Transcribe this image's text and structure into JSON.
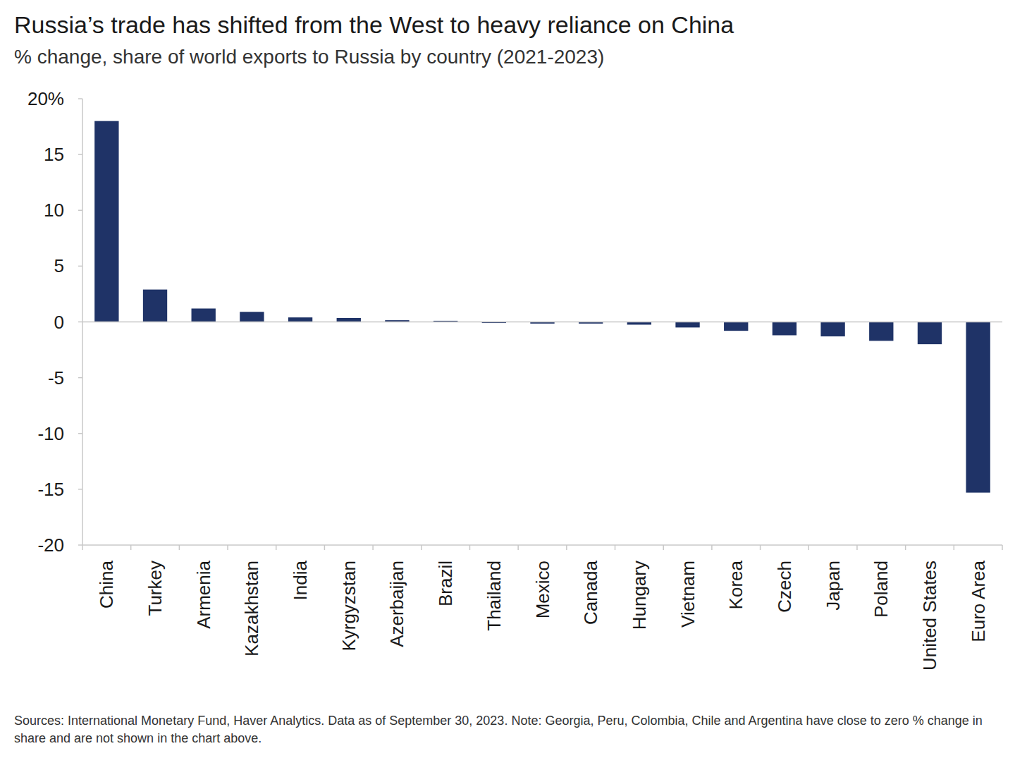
{
  "chart_data": {
    "type": "bar",
    "title": "Russia’s trade has shifted from the West to heavy reliance on China",
    "subtitle": "% change, share of world exports to Russia by country (2021-2023)",
    "source": "Sources: International Monetary Fund, Haver Analytics. Data as of September 30, 2023. Note: Georgia, Peru, Colombia, Chile and Argentina have close to zero % change in share and are not shown in the chart above.",
    "categories": [
      "China",
      "Turkey",
      "Armenia",
      "Kazakhstan",
      "India",
      "Kyrgyzstan",
      "Azerbaijan",
      "Brazil",
      "Thailand",
      "Mexico",
      "Canada",
      "Hungary",
      "Vietnam",
      "Korea",
      "Czech",
      "Japan",
      "Poland",
      "United States",
      "Euro Area"
    ],
    "values": [
      18,
      2.9,
      1.2,
      0.9,
      0.4,
      0.35,
      0.15,
      0.1,
      -0.1,
      -0.15,
      -0.15,
      -0.25,
      -0.5,
      -0.8,
      -1.2,
      -1.3,
      -1.7,
      -2.0,
      -15.3
    ],
    "color": "#1f3367",
    "ylim": [
      -20,
      20
    ],
    "yticks": [
      -20,
      -15,
      -10,
      -5,
      0,
      5,
      10,
      15,
      {
        "value": 20,
        "label": "20%"
      }
    ],
    "grid": false
  }
}
